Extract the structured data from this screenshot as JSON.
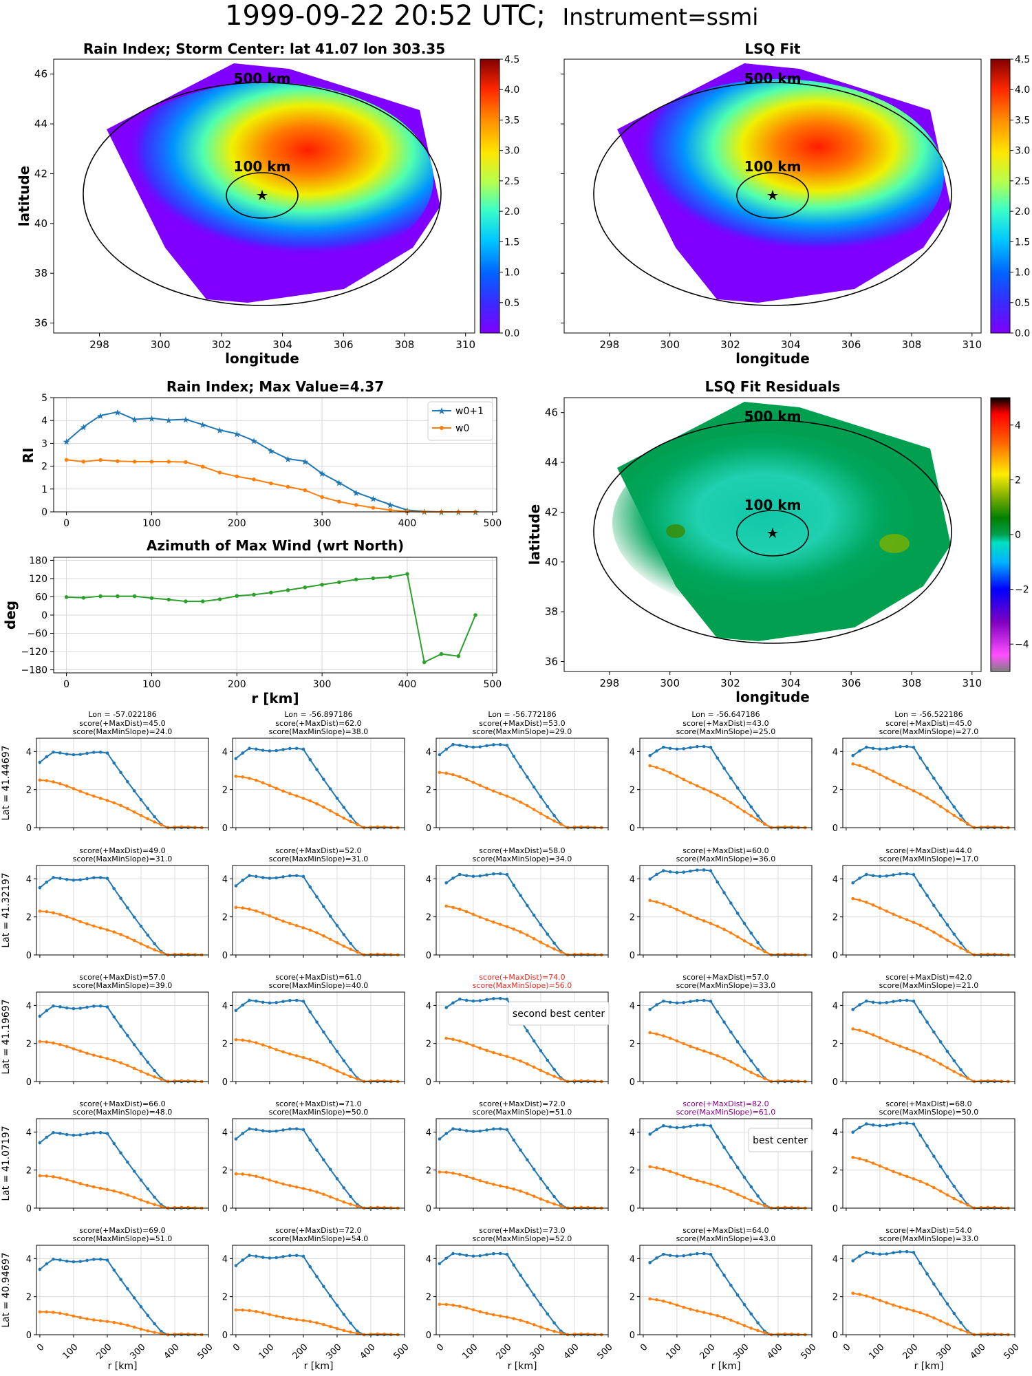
{
  "header": {
    "title_date": "1999-09-22 20:52 UTC;",
    "title_instrument": "Instrument=ssmi"
  },
  "colors": {
    "w0p1": "#1f77b4",
    "w0": "#ff7f0e",
    "azimuth": "#2ca02c",
    "highlight_second": "#e8291c",
    "highlight_best": "#8b008b",
    "map_background": "#7f00ff"
  },
  "maps": {
    "rain_index": {
      "title": "Rain Index; Storm Center: lat 41.07 lon 303.35",
      "xlabel": "longitude",
      "ylabel": "latitude",
      "circle_outer_label": "500 km",
      "circle_inner_label": "100 km"
    },
    "lsq_fit": {
      "title": "LSQ Fit",
      "xlabel": "longitude",
      "circle_outer_label": "500 km",
      "circle_inner_label": "100 km"
    },
    "residuals": {
      "title": "LSQ Fit Residuals",
      "xlabel": "longitude",
      "ylabel": "latitude",
      "circle_outer_label": "500 km",
      "circle_inner_label": "100 km"
    }
  },
  "chart_data": [
    {
      "type": "heatmap",
      "title": "Rain Index; Storm Center: lat 41.07 lon 303.35",
      "xlabel": "longitude",
      "ylabel": "latitude",
      "xlim": [
        296.5,
        310.3
      ],
      "ylim": [
        35.6,
        46.6
      ],
      "xticks": [
        "298",
        "300",
        "302",
        "304",
        "306",
        "308",
        "310"
      ],
      "yticks": [
        "36",
        "38",
        "40",
        "42",
        "44",
        "46"
      ],
      "colorbar": {
        "min": 0.0,
        "max": 4.5,
        "ticks": [
          "0.0",
          "0.5",
          "1.0",
          "1.5",
          "2.0",
          "2.5",
          "3.0",
          "3.5",
          "4.0",
          "4.5"
        ]
      },
      "storm_center": {
        "lat": 41.07,
        "lon": 303.35
      }
    },
    {
      "type": "heatmap",
      "title": "LSQ Fit",
      "xlabel": "longitude",
      "xlim": [
        296.5,
        310.3
      ],
      "ylim": [
        35.6,
        46.6
      ],
      "xticks": [
        "298",
        "300",
        "302",
        "304",
        "306",
        "308",
        "310"
      ],
      "colorbar": {
        "min": 0.0,
        "max": 4.5,
        "ticks": [
          "0.0",
          "0.5",
          "1.0",
          "1.5",
          "2.0",
          "2.5",
          "3.0",
          "3.5",
          "4.0",
          "4.5"
        ]
      }
    },
    {
      "type": "line",
      "title": "Rain Index; Max Value=4.37",
      "ylabel": "RI",
      "xlim": [
        -15,
        505
      ],
      "ylim": [
        0,
        5
      ],
      "xticks": [
        "0",
        "100",
        "200",
        "300",
        "400",
        "500"
      ],
      "yticks": [
        "0",
        "1",
        "2",
        "3",
        "4",
        "5"
      ],
      "grid": true,
      "legend_position": "top-right",
      "x": [
        0,
        20,
        40,
        60,
        80,
        100,
        120,
        140,
        160,
        180,
        200,
        220,
        240,
        260,
        280,
        300,
        320,
        340,
        360,
        380,
        400,
        420,
        440,
        460,
        480
      ],
      "series": [
        {
          "name": "w0+1",
          "marker": "star",
          "values": [
            3.08,
            3.72,
            4.22,
            4.37,
            4.05,
            4.1,
            4.02,
            4.05,
            3.82,
            3.58,
            3.42,
            3.12,
            2.68,
            2.32,
            2.22,
            1.68,
            1.28,
            0.85,
            0.58,
            0.32,
            0.08,
            0.02,
            0.0,
            0.0,
            0.0
          ]
        },
        {
          "name": "w0",
          "marker": "dot",
          "values": [
            2.28,
            2.2,
            2.27,
            2.22,
            2.2,
            2.2,
            2.2,
            2.18,
            1.98,
            1.72,
            1.55,
            1.42,
            1.25,
            1.1,
            0.95,
            0.65,
            0.45,
            0.3,
            0.18,
            0.08,
            0.02,
            0.0,
            0.0,
            0.0,
            0.0
          ]
        }
      ]
    },
    {
      "type": "line",
      "title": "Azimuth of Max Wind (wrt North)",
      "xlabel": "r [km]",
      "ylabel": "deg",
      "xlim": [
        -15,
        505
      ],
      "ylim": [
        -190,
        190
      ],
      "xticks": [
        "0",
        "100",
        "200",
        "300",
        "400",
        "500"
      ],
      "yticks": [
        "180",
        "120",
        "60",
        "0",
        "−60",
        "−120",
        "−180"
      ],
      "grid": true,
      "x": [
        0,
        20,
        40,
        60,
        80,
        100,
        120,
        140,
        160,
        180,
        200,
        220,
        240,
        260,
        280,
        300,
        320,
        340,
        360,
        380,
        400,
        420,
        440,
        460,
        480
      ],
      "values": [
        59,
        57,
        62,
        62,
        62,
        56,
        51,
        45,
        45,
        52,
        63,
        67,
        74,
        82,
        91,
        100,
        108,
        117,
        121,
        125,
        135,
        -155,
        -128,
        -135,
        0
      ]
    },
    {
      "type": "heatmap",
      "title": "LSQ Fit Residuals",
      "xlabel": "longitude",
      "ylabel": "latitude",
      "xlim": [
        296.5,
        310.3
      ],
      "ylim": [
        35.6,
        46.6
      ],
      "xticks": [
        "298",
        "300",
        "302",
        "304",
        "306",
        "308",
        "310"
      ],
      "yticks": [
        "36",
        "38",
        "40",
        "42",
        "44",
        "46"
      ],
      "colorbar": {
        "min": -5.0,
        "max": 5.0,
        "ticks": [
          "4",
          "2",
          "0",
          "−2",
          "−4"
        ]
      }
    },
    {
      "type": "line",
      "title": "Grid of candidate centers",
      "xlabel": "r [km]",
      "xlim": [
        -10,
        500
      ],
      "ylim": [
        0,
        4.7
      ],
      "xticks": [
        "0",
        "100",
        "200",
        "300",
        "400",
        "500"
      ],
      "yticks": [
        "0",
        "2",
        "4"
      ],
      "grid": true,
      "column_lons": [
        "Lon = -57.022186",
        "Lon = -56.897186",
        "Lon = -56.772186",
        "Lon = -56.647186",
        "Lon = -56.522186"
      ],
      "row_lats": [
        "Lat = 41.44697",
        "Lat = 41.32197",
        "Lat = 41.19697",
        "Lat = 41.07197",
        "Lat = 40.94697"
      ],
      "cells": [
        [
          {
            "s1": "score(+MaxDist)=45.0",
            "s2": "score(MaxMinSlope)=24.0",
            "hl": "",
            "start": 0,
            "peak": 3.9,
            "base": 2.5
          },
          {
            "s1": "score(+MaxDist)=62.0",
            "s2": "score(MaxMinSlope)=38.0",
            "hl": "",
            "start": 0,
            "peak": 4.1,
            "base": 2.7
          },
          {
            "s1": "score(+MaxDist)=53.0",
            "s2": "score(MaxMinSlope)=29.0",
            "hl": "",
            "start": 0,
            "peak": 4.3,
            "base": 2.9
          },
          {
            "s1": "score(+MaxDist)=43.0",
            "s2": "score(MaxMinSlope)=25.0",
            "hl": "",
            "start": 20,
            "peak": 4.2,
            "base": 3.3
          },
          {
            "s1": "score(+MaxDist)=45.0",
            "s2": "score(MaxMinSlope)=27.0",
            "hl": "",
            "start": 20,
            "peak": 4.2,
            "base": 3.4
          }
        ],
        [
          {
            "s1": "score(+MaxDist)=49.0",
            "s2": "score(MaxMinSlope)=31.0",
            "hl": "",
            "start": 0,
            "peak": 4.0,
            "base": 2.3
          },
          {
            "s1": "score(+MaxDist)=52.0",
            "s2": "score(MaxMinSlope)=31.0",
            "hl": "",
            "start": 0,
            "peak": 4.1,
            "base": 2.5
          },
          {
            "s1": "score(+MaxDist)=58.0",
            "s2": "score(MaxMinSlope)=34.0",
            "hl": "",
            "start": 20,
            "peak": 4.2,
            "base": 2.6
          },
          {
            "s1": "score(+MaxDist)=60.0",
            "s2": "score(MaxMinSlope)=36.0",
            "hl": "",
            "start": 20,
            "peak": 4.4,
            "base": 2.9
          },
          {
            "s1": "score(+MaxDist)=44.0",
            "s2": "score(MaxMinSlope)=17.0",
            "hl": "",
            "start": 20,
            "peak": 4.2,
            "base": 3.0
          }
        ],
        [
          {
            "s1": "score(+MaxDist)=57.0",
            "s2": "score(MaxMinSlope)=39.0",
            "hl": "",
            "start": 0,
            "peak": 3.9,
            "base": 2.1
          },
          {
            "s1": "score(+MaxDist)=61.0",
            "s2": "score(MaxMinSlope)=40.0",
            "hl": "",
            "start": 0,
            "peak": 4.2,
            "base": 2.2
          },
          {
            "s1": "score(+MaxDist)=74.0",
            "s2": "score(MaxMinSlope)=56.0",
            "hl": "second",
            "start": 20,
            "peak": 4.3,
            "base": 2.3
          },
          {
            "s1": "score(+MaxDist)=57.0",
            "s2": "score(MaxMinSlope)=33.0",
            "hl": "",
            "start": 20,
            "peak": 4.2,
            "base": 2.6
          },
          {
            "s1": "score(+MaxDist)=42.0",
            "s2": "score(MaxMinSlope)=21.0",
            "hl": "",
            "start": 20,
            "peak": 4.2,
            "base": 2.8
          }
        ],
        [
          {
            "s1": "score(+MaxDist)=66.0",
            "s2": "score(MaxMinSlope)=48.0",
            "hl": "",
            "start": 0,
            "peak": 3.9,
            "base": 1.7
          },
          {
            "s1": "score(+MaxDist)=71.0",
            "s2": "score(MaxMinSlope)=50.0",
            "hl": "",
            "start": 0,
            "peak": 4.1,
            "base": 1.8
          },
          {
            "s1": "score(+MaxDist)=72.0",
            "s2": "score(MaxMinSlope)=51.0",
            "hl": "",
            "start": 0,
            "peak": 4.1,
            "base": 1.9
          },
          {
            "s1": "score(+MaxDist)=82.0",
            "s2": "score(MaxMinSlope)=61.0",
            "hl": "best",
            "start": 20,
            "peak": 4.3,
            "base": 2.2
          },
          {
            "s1": "score(+MaxDist)=68.0",
            "s2": "score(MaxMinSlope)=50.0",
            "hl": "",
            "start": 20,
            "peak": 4.4,
            "base": 2.7
          }
        ],
        [
          {
            "s1": "score(+MaxDist)=69.0",
            "s2": "score(MaxMinSlope)=51.0",
            "hl": "",
            "start": 0,
            "peak": 3.9,
            "base": 1.2
          },
          {
            "s1": "score(+MaxDist)=72.0",
            "s2": "score(MaxMinSlope)=54.0",
            "hl": "",
            "start": 0,
            "peak": 4.1,
            "base": 1.3
          },
          {
            "s1": "score(+MaxDist)=73.0",
            "s2": "score(MaxMinSlope)=52.0",
            "hl": "",
            "start": 0,
            "peak": 4.2,
            "base": 1.6
          },
          {
            "s1": "score(+MaxDist)=64.0",
            "s2": "score(MaxMinSlope)=43.0",
            "hl": "",
            "start": 20,
            "peak": 4.2,
            "base": 1.9
          },
          {
            "s1": "score(+MaxDist)=54.0",
            "s2": "score(MaxMinSlope)=33.0",
            "hl": "",
            "start": 20,
            "peak": 4.3,
            "base": 2.2
          }
        ]
      ],
      "annotations": {
        "second": "second best center",
        "best": "best center"
      }
    }
  ]
}
